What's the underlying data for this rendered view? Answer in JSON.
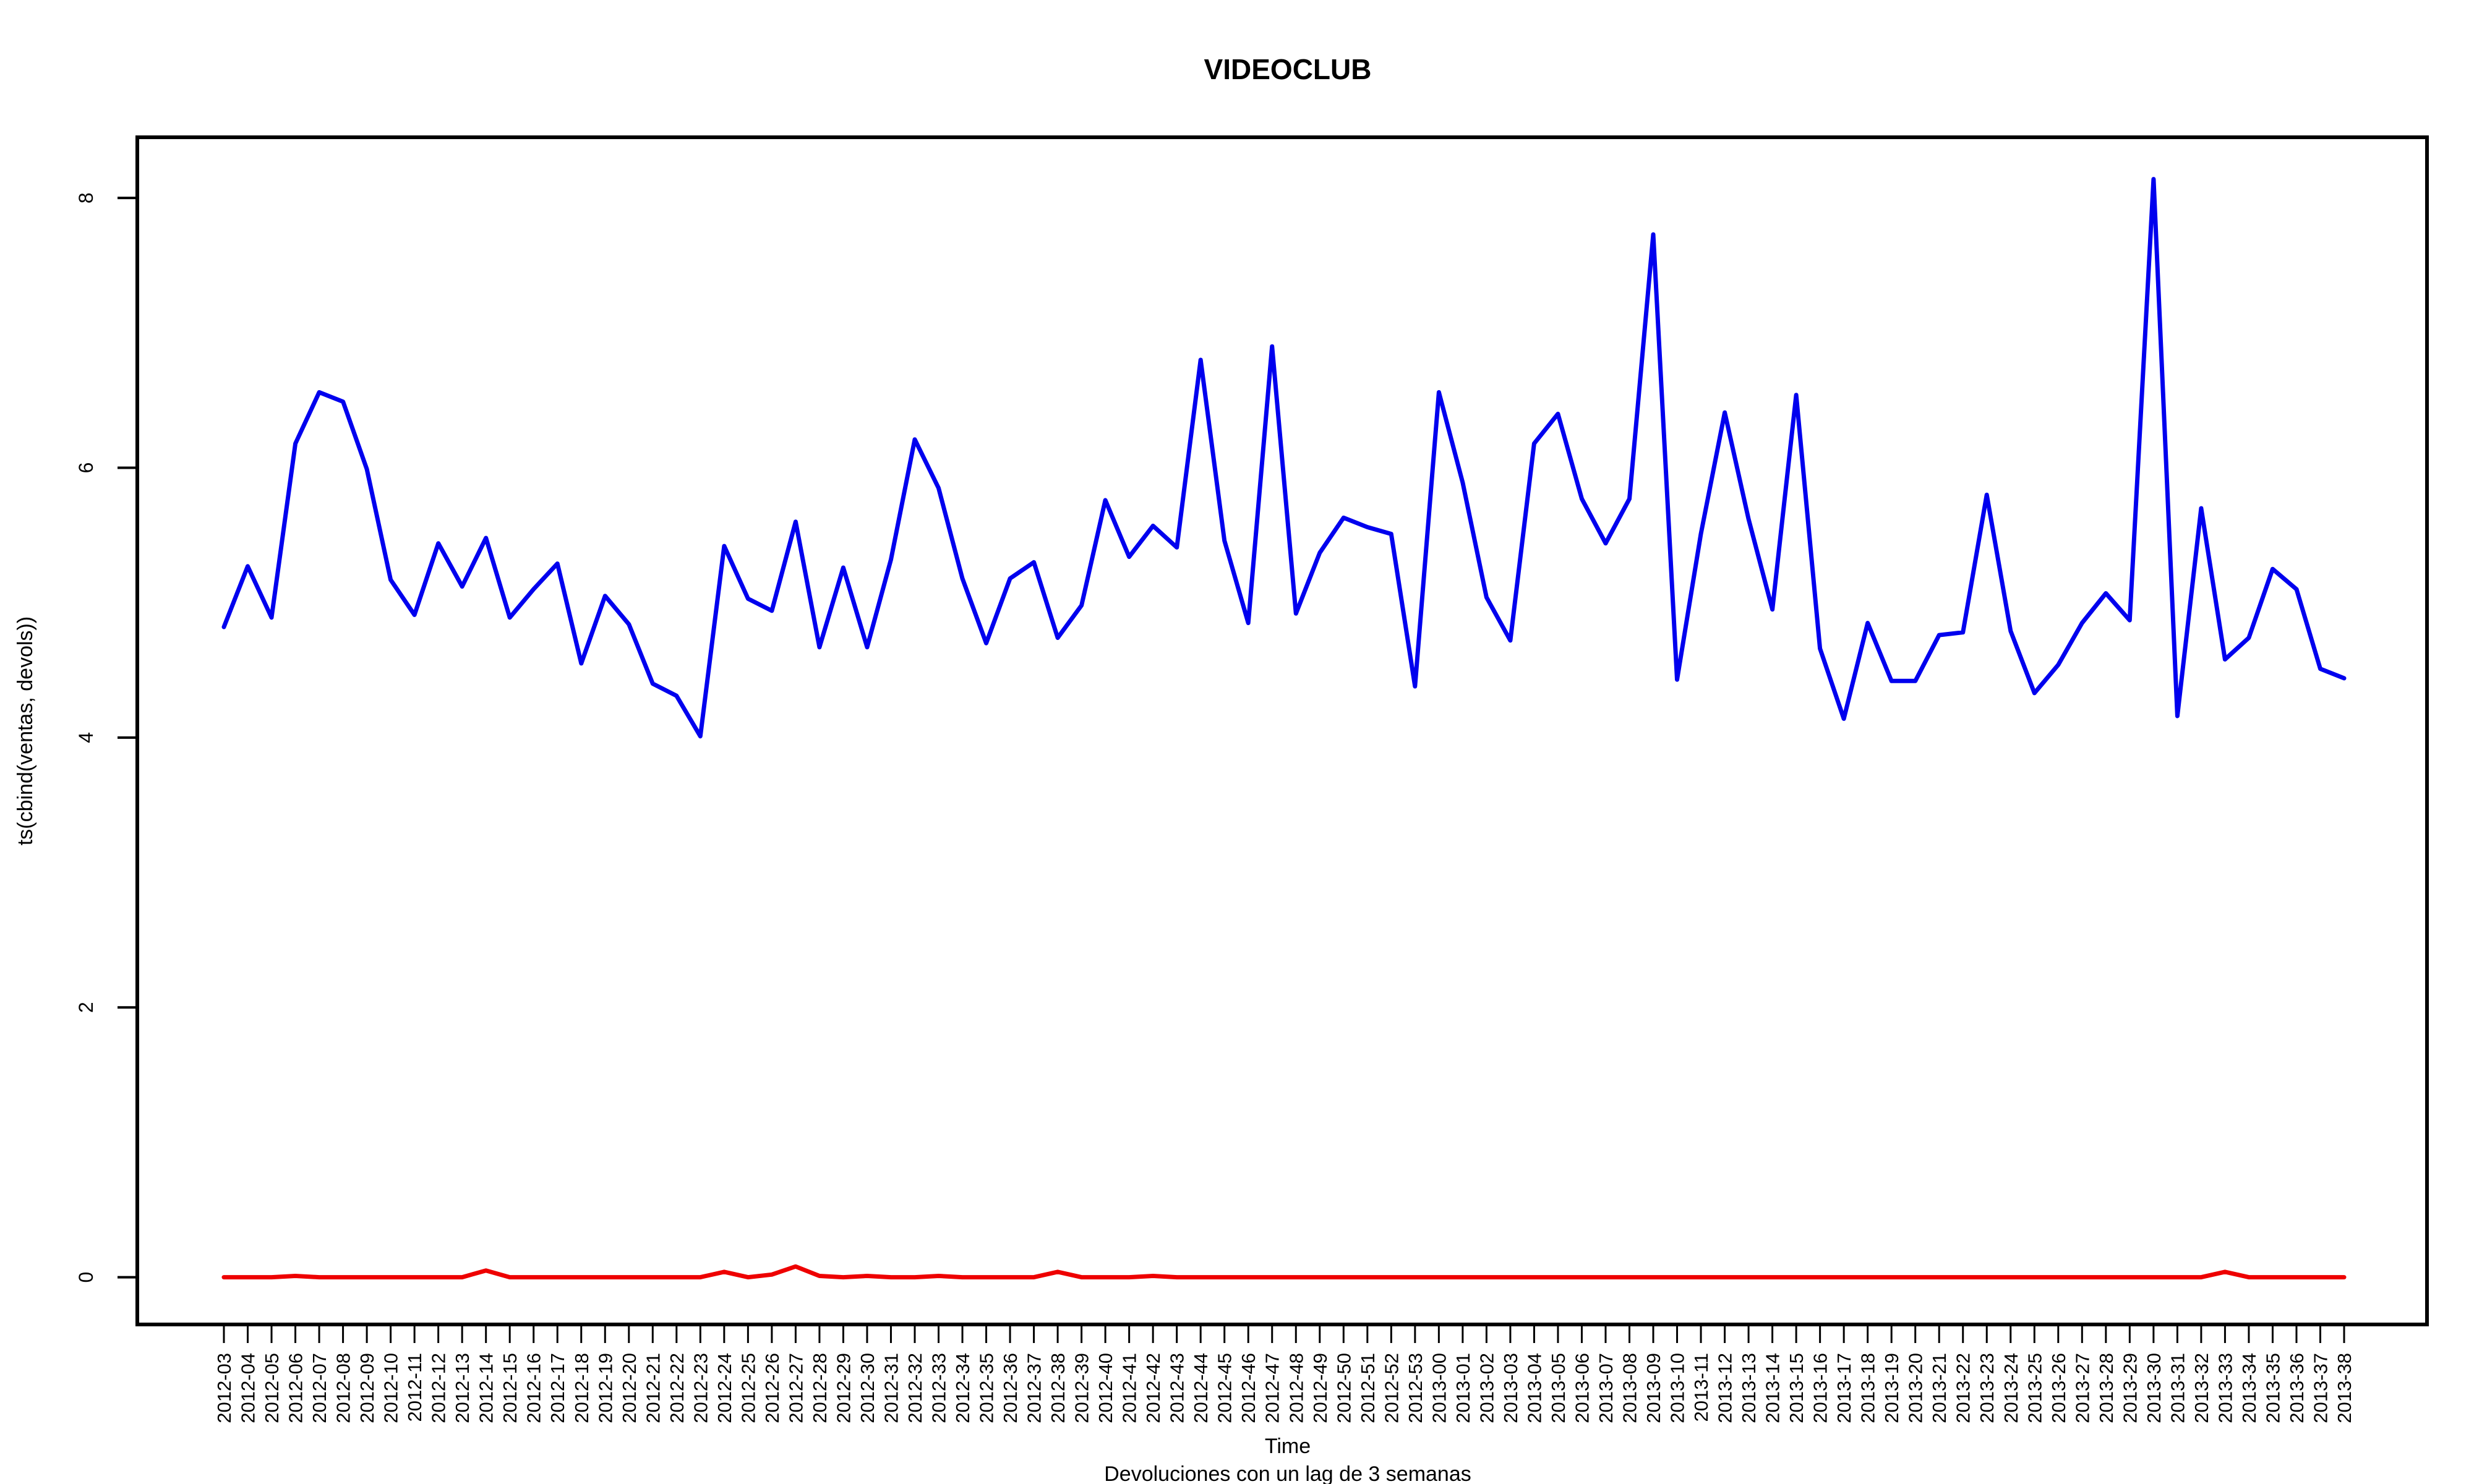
{
  "chart_data": {
    "type": "line",
    "title": "VIDEOCLUB",
    "xlabel": "Time",
    "ylabel": "ts(cbind(ventas, devols))",
    "subtitle": "Devoluciones con un lag de 3 semanas",
    "ylim": [
      -0.35,
      8.45
    ],
    "yticks": [
      0,
      2,
      4,
      6,
      8
    ],
    "grid": false,
    "legend": "none",
    "categories": [
      "2012-03",
      "2012-04",
      "2012-05",
      "2012-06",
      "2012-07",
      "2012-08",
      "2012-09",
      "2012-10",
      "2012-11",
      "2012-12",
      "2012-13",
      "2012-14",
      "2012-15",
      "2012-16",
      "2012-17",
      "2012-18",
      "2012-19",
      "2012-20",
      "2012-21",
      "2012-22",
      "2012-23",
      "2012-24",
      "2012-25",
      "2012-26",
      "2012-27",
      "2012-28",
      "2012-29",
      "2012-30",
      "2012-31",
      "2012-32",
      "2012-33",
      "2012-34",
      "2012-35",
      "2012-36",
      "2012-37",
      "2012-38",
      "2012-39",
      "2012-40",
      "2012-41",
      "2012-42",
      "2012-43",
      "2012-44",
      "2012-45",
      "2012-46",
      "2012-47",
      "2012-48",
      "2012-49",
      "2012-50",
      "2012-51",
      "2012-52",
      "2012-53",
      "2013-00",
      "2013-01",
      "2013-02",
      "2013-03",
      "2013-04",
      "2013-05",
      "2013-06",
      "2013-07",
      "2013-08",
      "2013-09",
      "2013-10",
      "2013-11",
      "2013-12",
      "2013-13",
      "2013-14",
      "2013-15",
      "2013-16",
      "2013-17",
      "2013-18",
      "2013-19",
      "2013-20",
      "2013-21",
      "2013-22",
      "2013-23",
      "2013-24",
      "2013-25",
      "2013-26",
      "2013-27",
      "2013-28",
      "2013-29",
      "2013-30",
      "2013-31",
      "2013-32",
      "2013-33",
      "2013-34",
      "2013-35",
      "2013-36",
      "2013-37",
      "2013-38"
    ],
    "series": [
      {
        "color": "#0000ee",
        "values": [
          4.82,
          5.27,
          4.89,
          6.18,
          6.56,
          6.49,
          5.99,
          5.17,
          4.91,
          5.44,
          5.12,
          5.48,
          4.89,
          5.1,
          5.29,
          4.55,
          5.05,
          4.84,
          4.4,
          4.31,
          4.01,
          5.42,
          5.03,
          4.94,
          5.6,
          4.67,
          5.26,
          4.67,
          5.32,
          6.21,
          5.85,
          5.18,
          4.7,
          5.18,
          5.3,
          4.74,
          4.98,
          5.76,
          5.34,
          5.57,
          5.41,
          6.8,
          5.46,
          4.85,
          6.9,
          4.92,
          5.37,
          5.63,
          5.56,
          5.51,
          4.38,
          6.56,
          5.89,
          5.04,
          4.72,
          6.18,
          6.4,
          5.77,
          5.44,
          5.77,
          7.73,
          4.43,
          5.51,
          6.41,
          5.62,
          4.95,
          6.54,
          4.66,
          4.14,
          4.85,
          4.42,
          4.42,
          4.76,
          4.78,
          5.8,
          4.79,
          4.33,
          4.54,
          4.85,
          5.07,
          4.87,
          8.14,
          4.16,
          5.7,
          4.58,
          4.74,
          5.25,
          5.1,
          4.51,
          4.44
        ]
      },
      {
        "color": "#ee0000",
        "values": [
          0,
          0,
          0,
          0.01,
          0,
          0,
          0,
          0,
          0,
          0,
          0,
          0.05,
          0,
          0,
          0,
          0,
          0,
          0,
          0,
          0,
          0,
          0.04,
          0,
          0.02,
          0.08,
          0.01,
          0,
          0.01,
          0,
          0,
          0.01,
          0,
          0,
          0,
          0,
          0.04,
          0,
          0,
          0,
          0.01,
          0,
          0,
          0,
          0,
          0,
          0,
          0,
          0,
          0,
          0,
          0,
          0,
          0,
          0,
          0,
          0,
          0,
          0,
          0,
          0,
          0,
          0,
          0,
          0,
          0,
          0,
          0,
          0,
          0,
          0,
          0,
          0,
          0,
          0,
          0,
          0,
          0,
          0,
          0,
          0,
          0,
          0,
          0,
          0,
          0.04,
          0,
          0,
          0,
          0,
          0
        ]
      }
    ]
  }
}
